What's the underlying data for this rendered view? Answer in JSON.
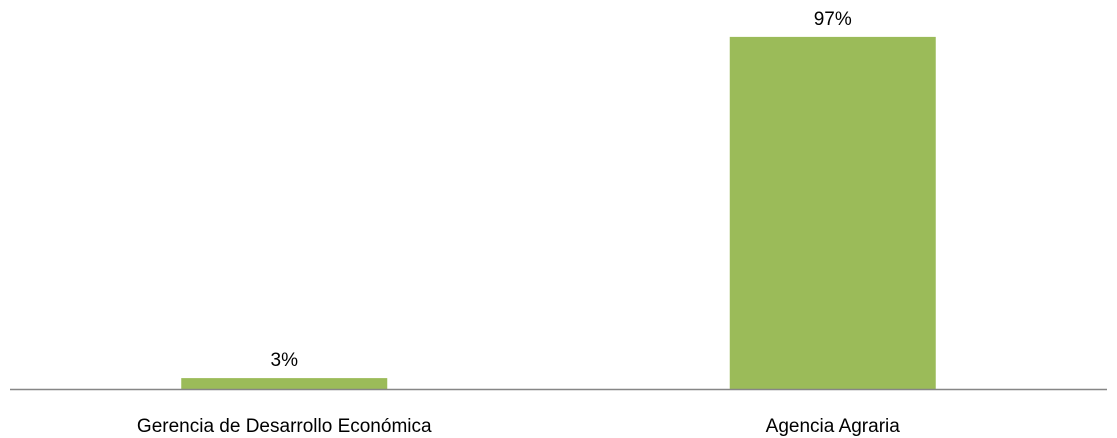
{
  "chart_data": {
    "type": "bar",
    "categories": [
      "Gerencia de Desarrollo Económica",
      "Agencia Agraria"
    ],
    "values": [
      3,
      97
    ],
    "value_labels": [
      "3%",
      "97%"
    ],
    "unit": "%",
    "ylim": [
      0,
      100
    ],
    "grid": false,
    "legend": "none",
    "colors": {
      "bar": "#9BBB59",
      "axis": "#868686"
    }
  }
}
